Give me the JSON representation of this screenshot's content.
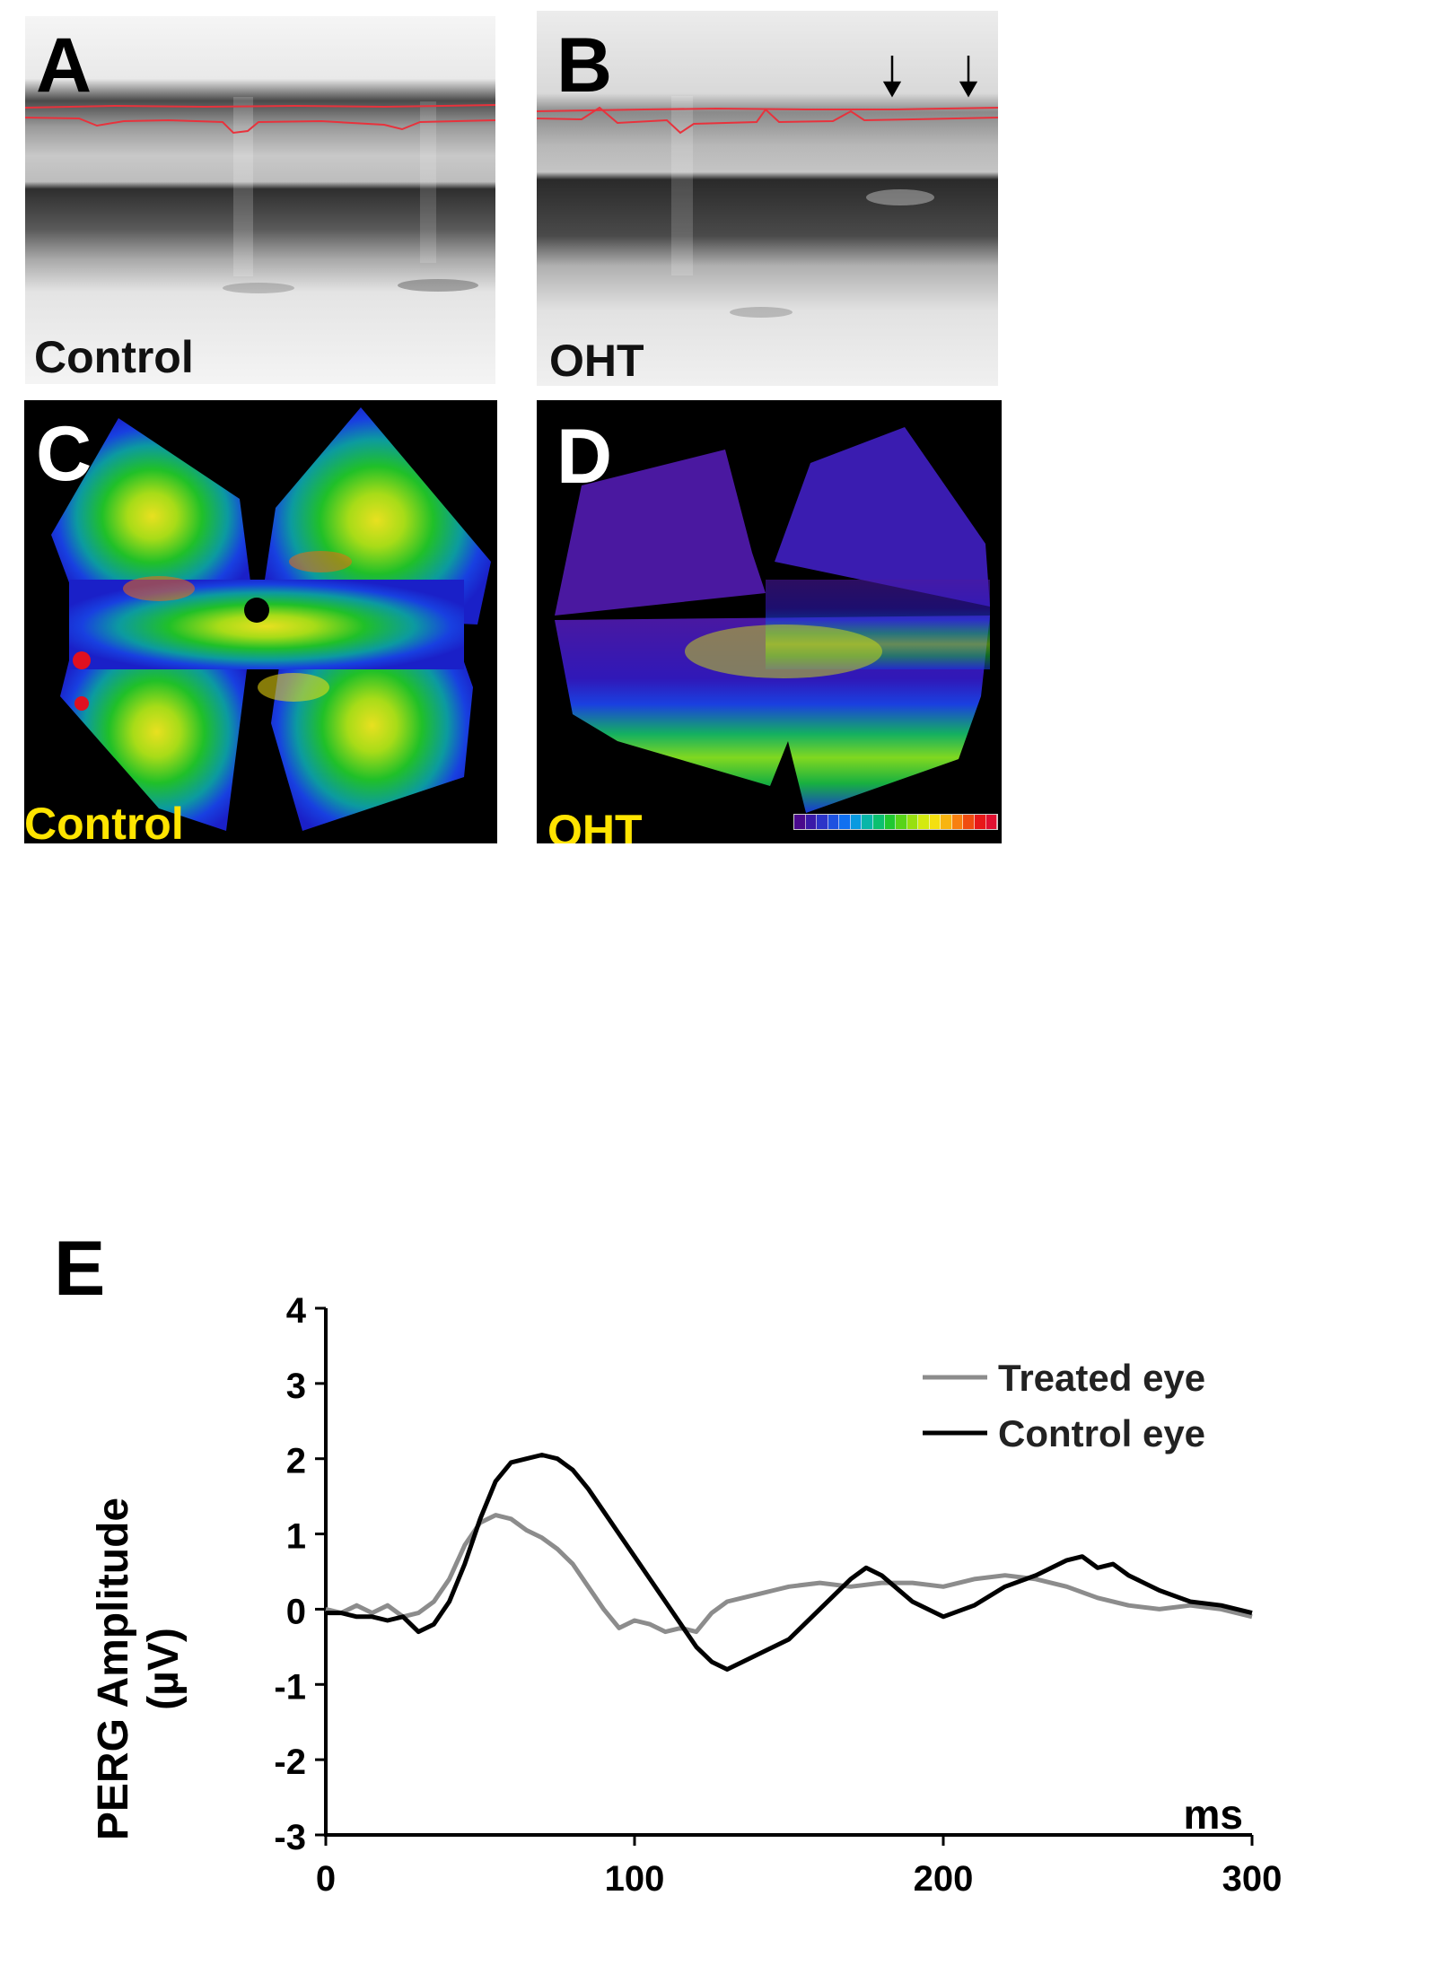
{
  "panels": {
    "A": {
      "letter": "A",
      "caption": "Control"
    },
    "B": {
      "letter": "B",
      "caption": "OHT"
    },
    "C": {
      "letter": "C",
      "caption": "Control"
    },
    "D": {
      "letter": "D",
      "caption": "OHT"
    }
  },
  "colorbar": {
    "colors": [
      "#4a0a8c",
      "#3a1aa8",
      "#2c34c8",
      "#1e52e0",
      "#1070f0",
      "#0a9ae0",
      "#08b6a8",
      "#0cc070",
      "#20c830",
      "#58d418",
      "#98e010",
      "#d4ea10",
      "#f4e010",
      "#f8b410",
      "#f88010",
      "#f04c10",
      "#e81818",
      "#e01030"
    ]
  },
  "chart_e": {
    "letter": "E",
    "chart_data": {
      "type": "line",
      "title": "",
      "xlabel": "ms",
      "ylabel": "PERG Amplitude (µV)",
      "ylabel_line1": "PERG Amplitude",
      "ylabel_line2": "(µV)",
      "xlim": [
        0,
        300
      ],
      "ylim": [
        -3,
        4
      ],
      "xticks": [
        0,
        100,
        200,
        300
      ],
      "yticks": [
        4,
        3,
        2,
        1,
        0,
        -1,
        -2,
        -3
      ],
      "legend_position": "top-right",
      "series": [
        {
          "name": "Treated eye",
          "color": "#8c8c8c",
          "x": [
            0,
            5,
            10,
            15,
            20,
            25,
            30,
            35,
            40,
            45,
            50,
            55,
            60,
            65,
            70,
            75,
            80,
            85,
            90,
            95,
            100,
            105,
            110,
            115,
            120,
            125,
            130,
            135,
            140,
            145,
            150,
            160,
            170,
            180,
            190,
            200,
            210,
            220,
            230,
            240,
            250,
            260,
            270,
            280,
            290,
            300
          ],
          "y": [
            0,
            -0.05,
            0.05,
            -0.05,
            0.05,
            -0.1,
            -0.05,
            0.1,
            0.4,
            0.85,
            1.15,
            1.25,
            1.2,
            1.05,
            0.95,
            0.8,
            0.6,
            0.3,
            0.0,
            -0.25,
            -0.15,
            -0.2,
            -0.3,
            -0.25,
            -0.3,
            -0.05,
            0.1,
            0.15,
            0.2,
            0.25,
            0.3,
            0.35,
            0.3,
            0.35,
            0.35,
            0.3,
            0.4,
            0.45,
            0.4,
            0.3,
            0.15,
            0.05,
            0.0,
            0.05,
            0.0,
            -0.1
          ]
        },
        {
          "name": "Control eye",
          "color": "#000000",
          "x": [
            0,
            5,
            10,
            15,
            20,
            25,
            30,
            35,
            40,
            45,
            50,
            55,
            60,
            65,
            70,
            75,
            80,
            85,
            90,
            95,
            100,
            105,
            110,
            115,
            120,
            125,
            130,
            135,
            140,
            150,
            160,
            170,
            175,
            180,
            190,
            200,
            210,
            220,
            230,
            240,
            245,
            250,
            255,
            260,
            270,
            280,
            290,
            300
          ],
          "y": [
            -0.05,
            -0.05,
            -0.1,
            -0.1,
            -0.15,
            -0.1,
            -0.3,
            -0.2,
            0.1,
            0.6,
            1.2,
            1.7,
            1.95,
            2.0,
            2.05,
            2.0,
            1.85,
            1.6,
            1.3,
            1.0,
            0.7,
            0.4,
            0.1,
            -0.2,
            -0.5,
            -0.7,
            -0.8,
            -0.7,
            -0.6,
            -0.4,
            0.0,
            0.4,
            0.55,
            0.45,
            0.1,
            -0.1,
            0.05,
            0.3,
            0.45,
            0.65,
            0.7,
            0.55,
            0.6,
            0.45,
            0.25,
            0.1,
            0.05,
            -0.05
          ]
        }
      ]
    }
  }
}
